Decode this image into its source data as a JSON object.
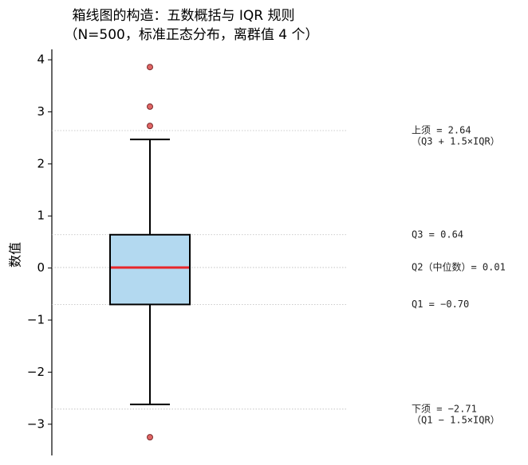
{
  "chart_data": {
    "type": "box",
    "title": "箱线图的构造：五数概括与 IQR 规则",
    "subtitle": "（N=500，标准正态分布，离群值 4 个）",
    "ylabel": "数值",
    "ylim": [
      -3.6,
      4.2
    ],
    "yticks": [
      {
        "value": -3,
        "label": "−3"
      },
      {
        "value": -2,
        "label": "−2"
      },
      {
        "value": -1,
        "label": "−1"
      },
      0,
      1,
      2,
      3,
      4
    ],
    "whisker_low": -2.62,
    "q1": -0.7,
    "median": 0.01,
    "q3": 0.64,
    "whisker_high": 2.47,
    "outliers": [
      3.86,
      3.1,
      2.73,
      -3.25
    ],
    "box_color": "#b3d9f0",
    "median_color": "#e8262a",
    "outlier_color": "#e06666",
    "annotations": [
      {
        "value": 2.64,
        "text": [
          "上须 = 2.64",
          "（Q3 + 1.5×IQR）"
        ]
      },
      {
        "value": 0.64,
        "text": [
          "Q3 = 0.64"
        ]
      },
      {
        "value": 0.01,
        "text": [
          "Q2（中位数）= 0.01"
        ]
      },
      {
        "value": -0.7,
        "text": [
          "Q1 = −0.70"
        ]
      },
      {
        "value": -2.71,
        "text": [
          "下须 = −2.71",
          "（Q1 − 1.5×IQR）"
        ]
      }
    ]
  }
}
